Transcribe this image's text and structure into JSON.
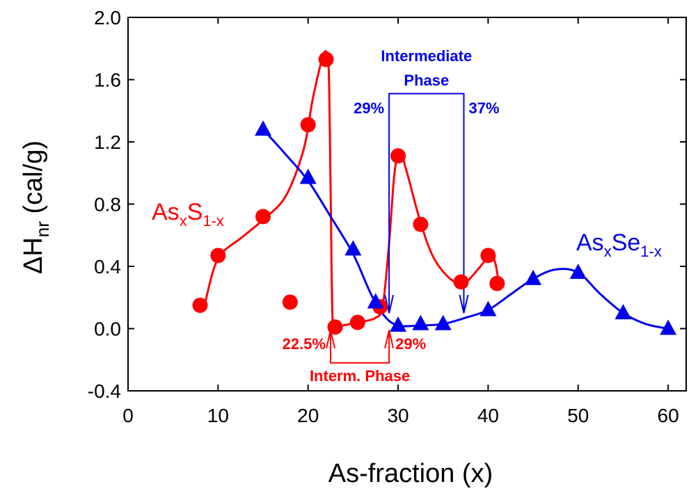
{
  "colors": {
    "as_s": "#ff0000",
    "as_se": "#0000ee",
    "axis": "#000000"
  },
  "chart_data": {
    "type": "scatter",
    "xlabel": "As-fraction (x)",
    "ylabel": {
      "main": "ΔH",
      "sub": "nr"
    },
    "ylabel_units": " (cal/g)",
    "xlim": [
      0,
      62
    ],
    "ylim": [
      -0.4,
      2.0
    ],
    "x_ticks": [
      "0",
      "10",
      "20",
      "30",
      "40",
      "50",
      "60"
    ],
    "y_ticks": [
      "-0.4",
      "0.0",
      "0.4",
      "0.8",
      "1.2",
      "1.6",
      "2.0"
    ],
    "grid": false,
    "series": [
      {
        "name_main": "As",
        "name_sub1": "x",
        "name_mid": "S",
        "name_sub2": "1-x",
        "marker": "circle",
        "color": "#ff0000",
        "points": [
          [
            8,
            0.15
          ],
          [
            10,
            0.47
          ],
          [
            15,
            0.72
          ],
          [
            18,
            0.17
          ],
          [
            20,
            1.31
          ],
          [
            22,
            1.73
          ],
          [
            23,
            0.01
          ],
          [
            25.5,
            0.04
          ],
          [
            28,
            0.14
          ],
          [
            30,
            1.11
          ],
          [
            32.5,
            0.67
          ],
          [
            37,
            0.3
          ],
          [
            40,
            0.47
          ],
          [
            41,
            0.29
          ]
        ],
        "curve": [
          [
            8.5,
            0.15
          ],
          [
            9.5,
            0.38
          ],
          [
            10.5,
            0.49
          ],
          [
            12.5,
            0.58
          ],
          [
            15,
            0.7
          ],
          [
            17.5,
            0.85
          ],
          [
            19.5,
            1.15
          ],
          [
            20.5,
            1.47
          ],
          [
            21.5,
            1.72
          ],
          [
            22.0,
            1.78
          ],
          [
            22.3,
            1.65
          ],
          [
            22.5,
            0.9
          ],
          [
            22.7,
            0.1
          ],
          [
            23,
            0.02
          ],
          [
            25.5,
            0.04
          ],
          [
            27.5,
            0.07
          ],
          [
            28.3,
            0.15
          ],
          [
            29.0,
            0.55
          ],
          [
            29.6,
            1.0
          ],
          [
            30.2,
            1.13
          ],
          [
            31.0,
            1.0
          ],
          [
            32.5,
            0.68
          ],
          [
            34,
            0.45
          ],
          [
            36,
            0.31
          ],
          [
            37.5,
            0.3
          ],
          [
            39,
            0.39
          ],
          [
            40.2,
            0.47
          ],
          [
            40.8,
            0.42
          ],
          [
            41.2,
            0.28
          ]
        ]
      },
      {
        "name_main": "As",
        "name_sub1": "x",
        "name_mid": "Se",
        "name_sub2": "1-x",
        "marker": "triangle",
        "color": "#0000ee",
        "points": [
          [
            15,
            1.28
          ],
          [
            20,
            0.97
          ],
          [
            25,
            0.51
          ],
          [
            27.5,
            0.17
          ],
          [
            30,
            0.02
          ],
          [
            32.5,
            0.03
          ],
          [
            35,
            0.03
          ],
          [
            40,
            0.12
          ],
          [
            45,
            0.32
          ],
          [
            50,
            0.36
          ],
          [
            55,
            0.1
          ],
          [
            60,
            0.0
          ]
        ],
        "curve": [
          [
            15,
            1.28
          ],
          [
            17.5,
            1.12
          ],
          [
            20,
            0.95
          ],
          [
            22.5,
            0.72
          ],
          [
            25,
            0.48
          ],
          [
            27,
            0.22
          ],
          [
            28.5,
            0.08
          ],
          [
            30,
            0.02
          ],
          [
            32.5,
            0.02
          ],
          [
            35,
            0.03
          ],
          [
            37.5,
            0.07
          ],
          [
            40,
            0.12
          ],
          [
            42.5,
            0.22
          ],
          [
            45,
            0.32
          ],
          [
            47.5,
            0.38
          ],
          [
            50,
            0.36
          ],
          [
            52.5,
            0.22
          ],
          [
            55,
            0.1
          ],
          [
            57.5,
            0.03
          ],
          [
            60,
            0.0
          ]
        ]
      }
    ],
    "annotations": {
      "intermediate_phase_top": {
        "line1": "Intermediate",
        "line2": "Phase",
        "left_pct": "29%",
        "right_pct": "37%",
        "x_left": 29,
        "x_right": 37.3,
        "y_bracket_top": 1.51,
        "y_arrow_tip": 0.1
      },
      "intermediate_phase_bottom": {
        "label": "Interm. Phase",
        "left_pct": "22.5%",
        "right_pct": "29%",
        "x_left": 22.5,
        "x_right": 29,
        "y_bracket_bottom": -0.22,
        "y_arrow_tip": -0.01
      }
    }
  }
}
